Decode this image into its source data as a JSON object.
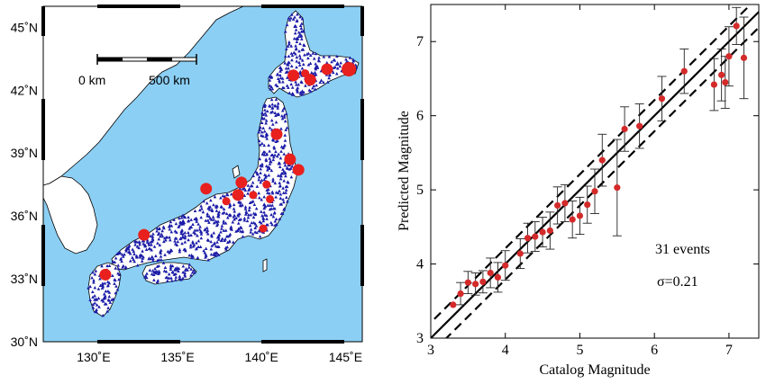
{
  "map": {
    "lat_labels": [
      "45˚N",
      "42˚N",
      "39˚N",
      "36˚N",
      "33˚N",
      "30˚N"
    ],
    "lon_labels": [
      "130˚E",
      "135˚E",
      "140˚E",
      "145˚E"
    ],
    "scale_bar": {
      "left_label": "0 km",
      "right_label": "500 km"
    },
    "colors": {
      "sea": "#8ccff4",
      "land": "#ffffff",
      "station": "#1c1ca8",
      "event": "#e8201e"
    },
    "events": [
      {
        "lon": 145.2,
        "lat": 43.0,
        "size": 3
      },
      {
        "lon": 143.9,
        "lat": 43.0,
        "size": 2
      },
      {
        "lon": 142.9,
        "lat": 42.5,
        "size": 2
      },
      {
        "lon": 141.9,
        "lat": 42.7,
        "size": 2
      },
      {
        "lon": 142.6,
        "lat": 42.8,
        "size": 1
      },
      {
        "lon": 140.9,
        "lat": 39.9,
        "size": 2
      },
      {
        "lon": 141.7,
        "lat": 38.7,
        "size": 2
      },
      {
        "lon": 142.2,
        "lat": 38.2,
        "size": 2
      },
      {
        "lon": 138.8,
        "lat": 37.6,
        "size": 2
      },
      {
        "lon": 140.3,
        "lat": 37.5,
        "size": 1
      },
      {
        "lon": 136.7,
        "lat": 37.3,
        "size": 2
      },
      {
        "lon": 138.6,
        "lat": 37.0,
        "size": 2
      },
      {
        "lon": 137.9,
        "lat": 36.7,
        "size": 1
      },
      {
        "lon": 139.5,
        "lat": 37.0,
        "size": 1
      },
      {
        "lon": 140.5,
        "lat": 36.8,
        "size": 1
      },
      {
        "lon": 140.1,
        "lat": 35.4,
        "size": 1
      },
      {
        "lon": 133.0,
        "lat": 35.1,
        "size": 2
      },
      {
        "lon": 130.7,
        "lat": 33.2,
        "size": 2
      }
    ]
  },
  "chart_data": {
    "type": "scatter",
    "xlabel": "Catalog Magnitude",
    "ylabel": "Predicted Magnitude",
    "xlim": [
      3,
      7.4
    ],
    "ylim": [
      3,
      7.5
    ],
    "xticks": [
      "3",
      "4",
      "5",
      "6",
      "7"
    ],
    "yticks": [
      "3",
      "4",
      "5",
      "6",
      "7"
    ],
    "annotations": [
      "31 events",
      "σ=0.21"
    ],
    "reference_lines": [
      {
        "style": "solid",
        "offset": 0
      },
      {
        "style": "dashed",
        "offset": 0.21
      },
      {
        "style": "dashed",
        "offset": -0.21
      }
    ],
    "point_color": "#d42a2a",
    "points": [
      {
        "x": 3.3,
        "y": 3.45,
        "err": 0.0
      },
      {
        "x": 3.4,
        "y": 3.6,
        "err": 0.15
      },
      {
        "x": 3.5,
        "y": 3.75,
        "err": 0.15
      },
      {
        "x": 3.6,
        "y": 3.73,
        "err": 0.15
      },
      {
        "x": 3.7,
        "y": 3.76,
        "err": 0.15
      },
      {
        "x": 3.8,
        "y": 3.88,
        "err": 0.2
      },
      {
        "x": 3.9,
        "y": 3.82,
        "err": 0.2
      },
      {
        "x": 4.0,
        "y": 3.98,
        "err": 0.2
      },
      {
        "x": 4.2,
        "y": 4.14,
        "err": 0.2
      },
      {
        "x": 4.3,
        "y": 4.35,
        "err": 0.2
      },
      {
        "x": 4.4,
        "y": 4.37,
        "err": 0.2
      },
      {
        "x": 4.5,
        "y": 4.43,
        "err": 0.2
      },
      {
        "x": 4.6,
        "y": 4.45,
        "err": 0.25
      },
      {
        "x": 4.7,
        "y": 4.79,
        "err": 0.25
      },
      {
        "x": 4.8,
        "y": 4.82,
        "err": 0.25
      },
      {
        "x": 4.9,
        "y": 4.6,
        "err": 0.25
      },
      {
        "x": 5.0,
        "y": 4.65,
        "err": 0.25
      },
      {
        "x": 5.1,
        "y": 4.8,
        "err": 0.25
      },
      {
        "x": 5.2,
        "y": 4.98,
        "err": 0.3
      },
      {
        "x": 5.3,
        "y": 5.4,
        "err": 0.35
      },
      {
        "x": 5.5,
        "y": 5.03,
        "err": 0.65
      },
      {
        "x": 5.6,
        "y": 5.82,
        "err": 0.3
      },
      {
        "x": 5.8,
        "y": 5.86,
        "err": 0.3
      },
      {
        "x": 6.1,
        "y": 6.23,
        "err": 0.3
      },
      {
        "x": 6.4,
        "y": 6.6,
        "err": 0.3
      },
      {
        "x": 6.8,
        "y": 6.42,
        "err": 0.35
      },
      {
        "x": 6.9,
        "y": 6.55,
        "err": 0.35
      },
      {
        "x": 6.95,
        "y": 6.45,
        "err": 0.35
      },
      {
        "x": 7.0,
        "y": 6.8,
        "err": 0.4
      },
      {
        "x": 7.1,
        "y": 7.21,
        "err": 0.25
      },
      {
        "x": 7.2,
        "y": 6.78,
        "err": 0.55
      }
    ]
  }
}
